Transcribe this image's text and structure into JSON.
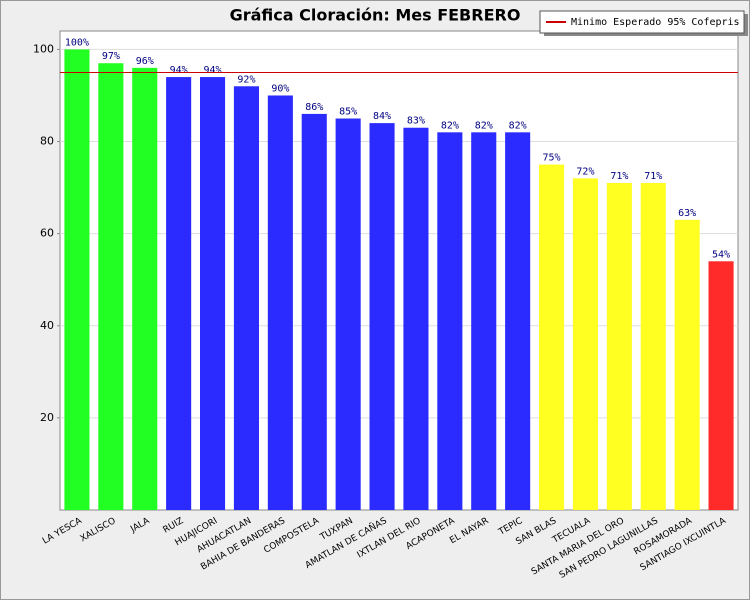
{
  "chart_data": {
    "type": "bar",
    "title": "Gráfica Cloración: Mes FEBRERO",
    "categories": [
      "LA YESCA",
      "XALISCO",
      "JALA",
      "RUIZ",
      "HUAJICORI",
      "AHUACATLAN",
      "BAHIA DE BANDERAS",
      "COMPOSTELA",
      "TUXPAN",
      "AMATLAN DE CAÑAS",
      "IXTLAN DEL RIO",
      "ACAPONETA",
      "EL NAYAR",
      "TEPIC",
      "SAN BLAS",
      "TECUALA",
      "SANTA MARIA DEL ORO",
      "SAN PEDRO LAGUNILLAS",
      "ROSAMORADA",
      "SANTIAGO IXCUINTLA"
    ],
    "values": [
      100,
      97,
      96,
      94,
      94,
      92,
      90,
      86,
      85,
      84,
      83,
      82,
      82,
      82,
      75,
      72,
      71,
      71,
      63,
      54
    ],
    "value_labels": [
      "100%",
      "97%",
      "96%",
      "94%",
      "94%",
      "92%",
      "90%",
      "86%",
      "85%",
      "84%",
      "83%",
      "82%",
      "82%",
      "82%",
      "75%",
      "72%",
      "71%",
      "71%",
      "63%",
      "54%"
    ],
    "colors": [
      "#22ff22",
      "#22ff22",
      "#22ff22",
      "#2b2bff",
      "#2b2bff",
      "#2b2bff",
      "#2b2bff",
      "#2b2bff",
      "#2b2bff",
      "#2b2bff",
      "#2b2bff",
      "#2b2bff",
      "#2b2bff",
      "#2b2bff",
      "#ffff22",
      "#ffff22",
      "#ffff22",
      "#ffff22",
      "#ffff22",
      "#ff2b2b"
    ],
    "reference_line": {
      "value": 95,
      "label": "Minimo Esperado 95% Cofepris",
      "color": "#cc0000"
    },
    "ylim": [
      0,
      104
    ],
    "yticks": [
      20,
      40,
      60,
      80,
      100
    ],
    "grid": true
  }
}
